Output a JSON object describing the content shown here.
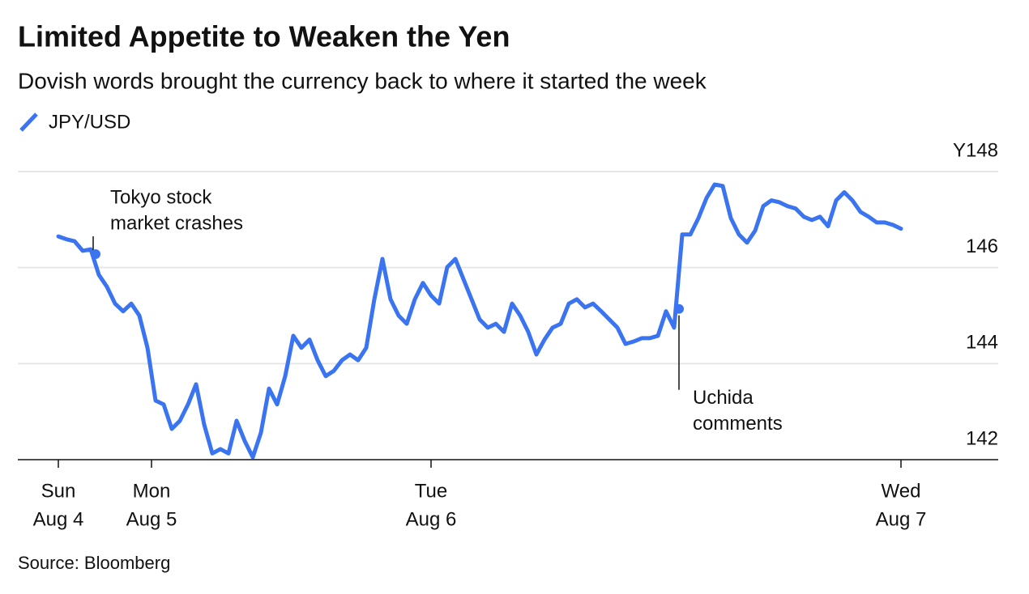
{
  "chart_data": {
    "type": "line",
    "title": "Limited Appetite to Weaken the Yen",
    "subtitle": "Dovish words brought the currency back to where it started the week",
    "source": "Source: Bloomberg",
    "series": [
      {
        "name": "JPY/USD",
        "color": "#3b74f0",
        "values": [
          146.65,
          146.59,
          146.55,
          146.35,
          146.38,
          145.85,
          145.6,
          145.25,
          145.09,
          145.25,
          145.0,
          144.33,
          143.23,
          143.15,
          142.64,
          142.81,
          143.15,
          143.57,
          142.73,
          142.13,
          142.22,
          142.13,
          142.81,
          142.39,
          142.05,
          142.56,
          143.48,
          143.15,
          143.74,
          144.58,
          144.33,
          144.5,
          144.07,
          143.74,
          143.85,
          144.07,
          144.19,
          144.07,
          144.33,
          145.34,
          146.18,
          145.34,
          145.0,
          144.83,
          145.34,
          145.68,
          145.42,
          145.25,
          146.01,
          146.18,
          145.76,
          145.34,
          144.92,
          144.75,
          144.83,
          144.66,
          145.25,
          145.0,
          144.66,
          144.19,
          144.5,
          144.75,
          144.83,
          145.25,
          145.34,
          145.17,
          145.25,
          145.09,
          144.92,
          144.75,
          144.41,
          144.46,
          144.53,
          144.53,
          144.58,
          145.09,
          144.75,
          146.69,
          146.69,
          147.03,
          147.45,
          147.73,
          147.7,
          147.03,
          146.69,
          146.52,
          146.77,
          147.28,
          147.4,
          147.36,
          147.28,
          147.23,
          147.06,
          146.99,
          147.06,
          146.86,
          147.4,
          147.57,
          147.4,
          147.16,
          147.06,
          146.94,
          146.94,
          146.89,
          146.81
        ]
      }
    ],
    "x": [
      10,
      12,
      14,
      16,
      18,
      20,
      22,
      24,
      26,
      28,
      30,
      32,
      34,
      36,
      38,
      40,
      42,
      44,
      46,
      48,
      50,
      52,
      54,
      56,
      58,
      60,
      62,
      64,
      66,
      68,
      70,
      72,
      74,
      76,
      78,
      80,
      82,
      84,
      86,
      88,
      90,
      92,
      94,
      96,
      98,
      100,
      102,
      104,
      106,
      108,
      110,
      112,
      114,
      116,
      118,
      120,
      122,
      124,
      126,
      128,
      130,
      132,
      134,
      136,
      138,
      140,
      142,
      144,
      146,
      148,
      150,
      152,
      154,
      156,
      158,
      160,
      162,
      164,
      166,
      168,
      170,
      172,
      174,
      176,
      178,
      180,
      182,
      184,
      186,
      188,
      190,
      192,
      194,
      196,
      198,
      200,
      202,
      204,
      206,
      208,
      210,
      212,
      214,
      216,
      218
    ],
    "xlim": [
      0,
      242
    ],
    "xticks": [
      {
        "value": 10,
        "label": [
          "Sun",
          "Aug 4"
        ]
      },
      {
        "value": 33,
        "label": [
          "Mon",
          "Aug 5"
        ]
      },
      {
        "value": 102,
        "label": [
          "Tue",
          "Aug 6"
        ]
      },
      {
        "value": 218,
        "label": [
          "Wed",
          "Aug 7"
        ]
      }
    ],
    "ylim": [
      142,
      148
    ],
    "yticks": [
      142,
      144,
      146,
      {
        "value": 148,
        "label": "Y148"
      }
    ],
    "grid": true,
    "annotations": [
      {
        "text": [
          "Tokyo stock",
          "market crashes"
        ],
        "x": 19.2,
        "y": 146.28
      },
      {
        "text": [
          "Uchida",
          "comments"
        ],
        "x": 163.2,
        "y": 145.14
      }
    ]
  }
}
